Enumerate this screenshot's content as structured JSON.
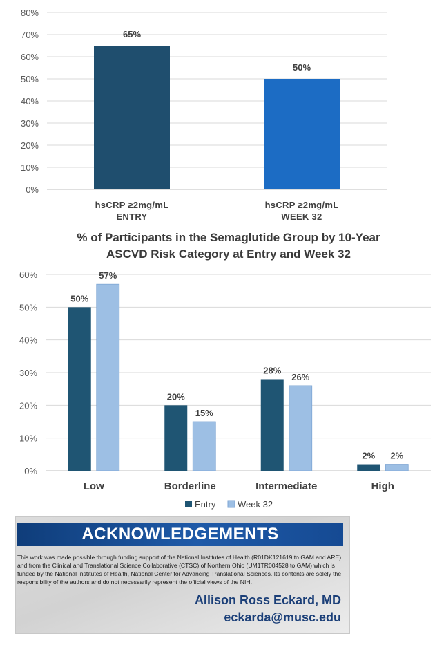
{
  "chart_data": [
    {
      "type": "bar",
      "categories": [
        "hsCRP ≥2mg/mL\nENTRY",
        "hsCRP ≥2mg/mL\nWEEK 32"
      ],
      "values": [
        65,
        50
      ],
      "data_labels": [
        "65%",
        "50%"
      ],
      "colors": [
        "#1f4e6e",
        "#1c6cc4"
      ],
      "ylim": [
        0,
        80
      ],
      "yticks": [
        "0%",
        "10%",
        "20%",
        "30%",
        "40%",
        "50%",
        "60%",
        "70%",
        "80%"
      ],
      "grid": true
    },
    {
      "type": "bar",
      "title": "% of Participants in the Semaglutide Group by 10-Year\nASCVD Risk Category at Entry and Week 32",
      "categories": [
        "Low",
        "Borderline",
        "Intermediate",
        "High"
      ],
      "series": [
        {
          "name": "Entry",
          "values": [
            50,
            20,
            28,
            2
          ],
          "data_labels": [
            "50%",
            "20%",
            "28%",
            "2%"
          ],
          "color": "#1f5573"
        },
        {
          "name": "Week 32",
          "values": [
            57,
            15,
            26,
            2
          ],
          "data_labels": [
            "57%",
            "15%",
            "26%",
            "2%"
          ],
          "color": "#9dbfe4"
        }
      ],
      "ylim": [
        0,
        60
      ],
      "yticks": [
        "0%",
        "10%",
        "20%",
        "30%",
        "40%",
        "50%",
        "60%"
      ],
      "grid": true,
      "legend": "bottom"
    }
  ],
  "acknowledgements": {
    "heading": "ACKNOWLEDGEMENTS",
    "body": "This work was made possible through funding support of the National Institutes of Health (R01DK121619 to GAM and ARE) and from the Clinical and Translational Science Collaborative (CTSC) of Northern Ohio (UM1TR004528 to GAM) which is funded by the National Institutes of Health, National Center for Advancing Translational Sciences. Its contents are solely the responsibility of the authors and do not necessarily represent the official views of the NIH.",
    "author": "Allison Ross Eckard, MD",
    "email": "eckarda@musc.edu"
  }
}
